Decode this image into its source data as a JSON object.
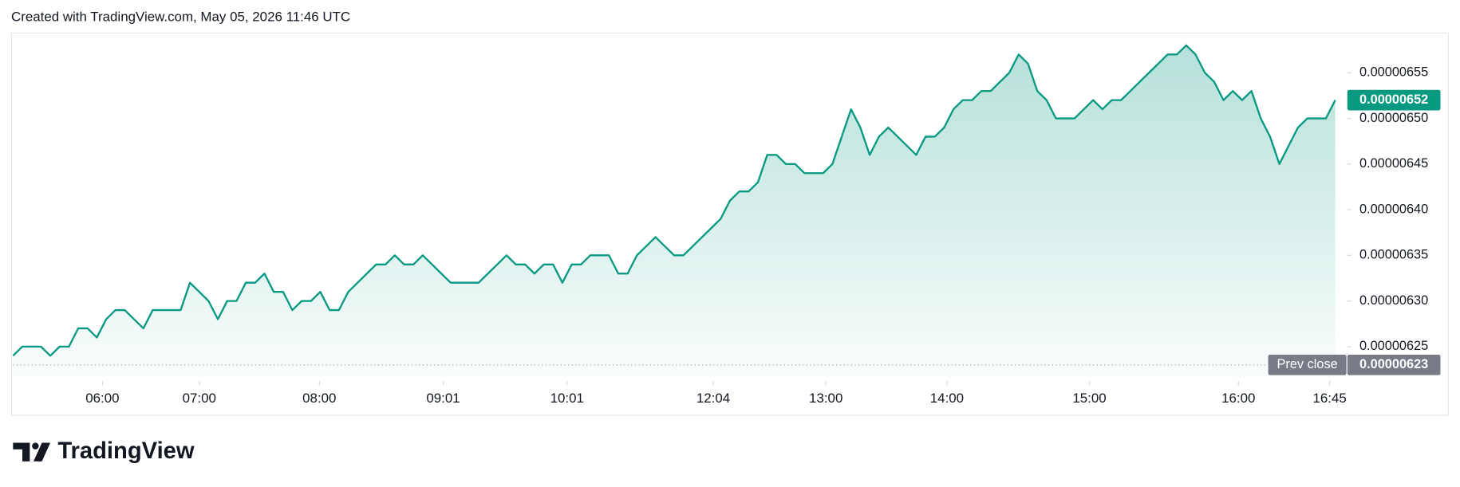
{
  "header": "Created with TradingView.com, May 05, 2026 11:46 UTC",
  "branding": "TradingView",
  "chart_data": {
    "type": "area",
    "color": "#089981",
    "series": [
      {
        "values": [
          6.24e-06,
          6.25e-06,
          6.25e-06,
          6.25e-06,
          6.24e-06,
          6.25e-06,
          6.25e-06,
          6.27e-06,
          6.27e-06,
          6.26e-06,
          6.28e-06,
          6.29e-06,
          6.29e-06,
          6.28e-06,
          6.27e-06,
          6.29e-06,
          6.29e-06,
          6.29e-06,
          6.29e-06,
          6.32e-06,
          6.31e-06,
          6.3e-06,
          6.28e-06,
          6.3e-06,
          6.3e-06,
          6.32e-06,
          6.32e-06,
          6.33e-06,
          6.31e-06,
          6.31e-06,
          6.29e-06,
          6.3e-06,
          6.3e-06,
          6.31e-06,
          6.29e-06,
          6.29e-06,
          6.31e-06,
          6.32e-06,
          6.33e-06,
          6.34e-06,
          6.34e-06,
          6.35e-06,
          6.34e-06,
          6.34e-06,
          6.35e-06,
          6.34e-06,
          6.33e-06,
          6.32e-06,
          6.32e-06,
          6.32e-06,
          6.32e-06,
          6.33e-06,
          6.34e-06,
          6.35e-06,
          6.34e-06,
          6.34e-06,
          6.33e-06,
          6.34e-06,
          6.34e-06,
          6.32e-06,
          6.34e-06,
          6.34e-06,
          6.35e-06,
          6.35e-06,
          6.35e-06,
          6.33e-06,
          6.33e-06,
          6.35e-06,
          6.36e-06,
          6.37e-06,
          6.36e-06,
          6.35e-06,
          6.35e-06,
          6.36e-06,
          6.37e-06,
          6.38e-06,
          6.39e-06,
          6.41e-06,
          6.42e-06,
          6.42e-06,
          6.43e-06,
          6.46e-06,
          6.46e-06,
          6.45e-06,
          6.45e-06,
          6.44e-06,
          6.44e-06,
          6.44e-06,
          6.45e-06,
          6.48e-06,
          6.51e-06,
          6.49e-06,
          6.46e-06,
          6.48e-06,
          6.49e-06,
          6.48e-06,
          6.47e-06,
          6.46e-06,
          6.48e-06,
          6.48e-06,
          6.49e-06,
          6.51e-06,
          6.52e-06,
          6.52e-06,
          6.53e-06,
          6.53e-06,
          6.54e-06,
          6.55e-06,
          6.57e-06,
          6.56e-06,
          6.53e-06,
          6.52e-06,
          6.5e-06,
          6.5e-06,
          6.5e-06,
          6.51e-06,
          6.52e-06,
          6.51e-06,
          6.52e-06,
          6.52e-06,
          6.53e-06,
          6.54e-06,
          6.55e-06,
          6.56e-06,
          6.57e-06,
          6.57e-06,
          6.58e-06,
          6.57e-06,
          6.55e-06,
          6.54e-06,
          6.52e-06,
          6.53e-06,
          6.52e-06,
          6.53e-06,
          6.5e-06,
          6.48e-06,
          6.45e-06,
          6.47e-06,
          6.49e-06,
          6.5e-06,
          6.5e-06,
          6.5e-06,
          6.52e-06
        ]
      }
    ],
    "xlim": [
      0,
      142.4
    ],
    "xticks": [
      {
        "value": 9.6,
        "label": "06:00"
      },
      {
        "value": 20,
        "label": "07:00"
      },
      {
        "value": 32.9,
        "label": "08:00"
      },
      {
        "value": 46.2,
        "label": "09:01"
      },
      {
        "value": 59.5,
        "label": "10:01"
      },
      {
        "value": 75.2,
        "label": "12:04"
      },
      {
        "value": 87.3,
        "label": "13:00"
      },
      {
        "value": 100.3,
        "label": "14:00"
      },
      {
        "value": 115.6,
        "label": "15:00"
      },
      {
        "value": 131.6,
        "label": "16:00"
      },
      {
        "value": 141.4,
        "label": "16:45"
      }
    ],
    "ylim": [
      6.217e-06,
      6.594e-06
    ],
    "yticks": [
      6.25e-06,
      {
        "value": 6.3e-06,
        "label": "0.00000630"
      },
      6.35e-06,
      {
        "value": 6.4e-06,
        "label": "0.00000640"
      },
      6.45e-06,
      {
        "value": 6.5e-06,
        "label": "0.00000650"
      },
      6.55e-06
    ],
    "prev_close": {
      "label": "Prev close",
      "value": 6.23e-06
    }
  }
}
